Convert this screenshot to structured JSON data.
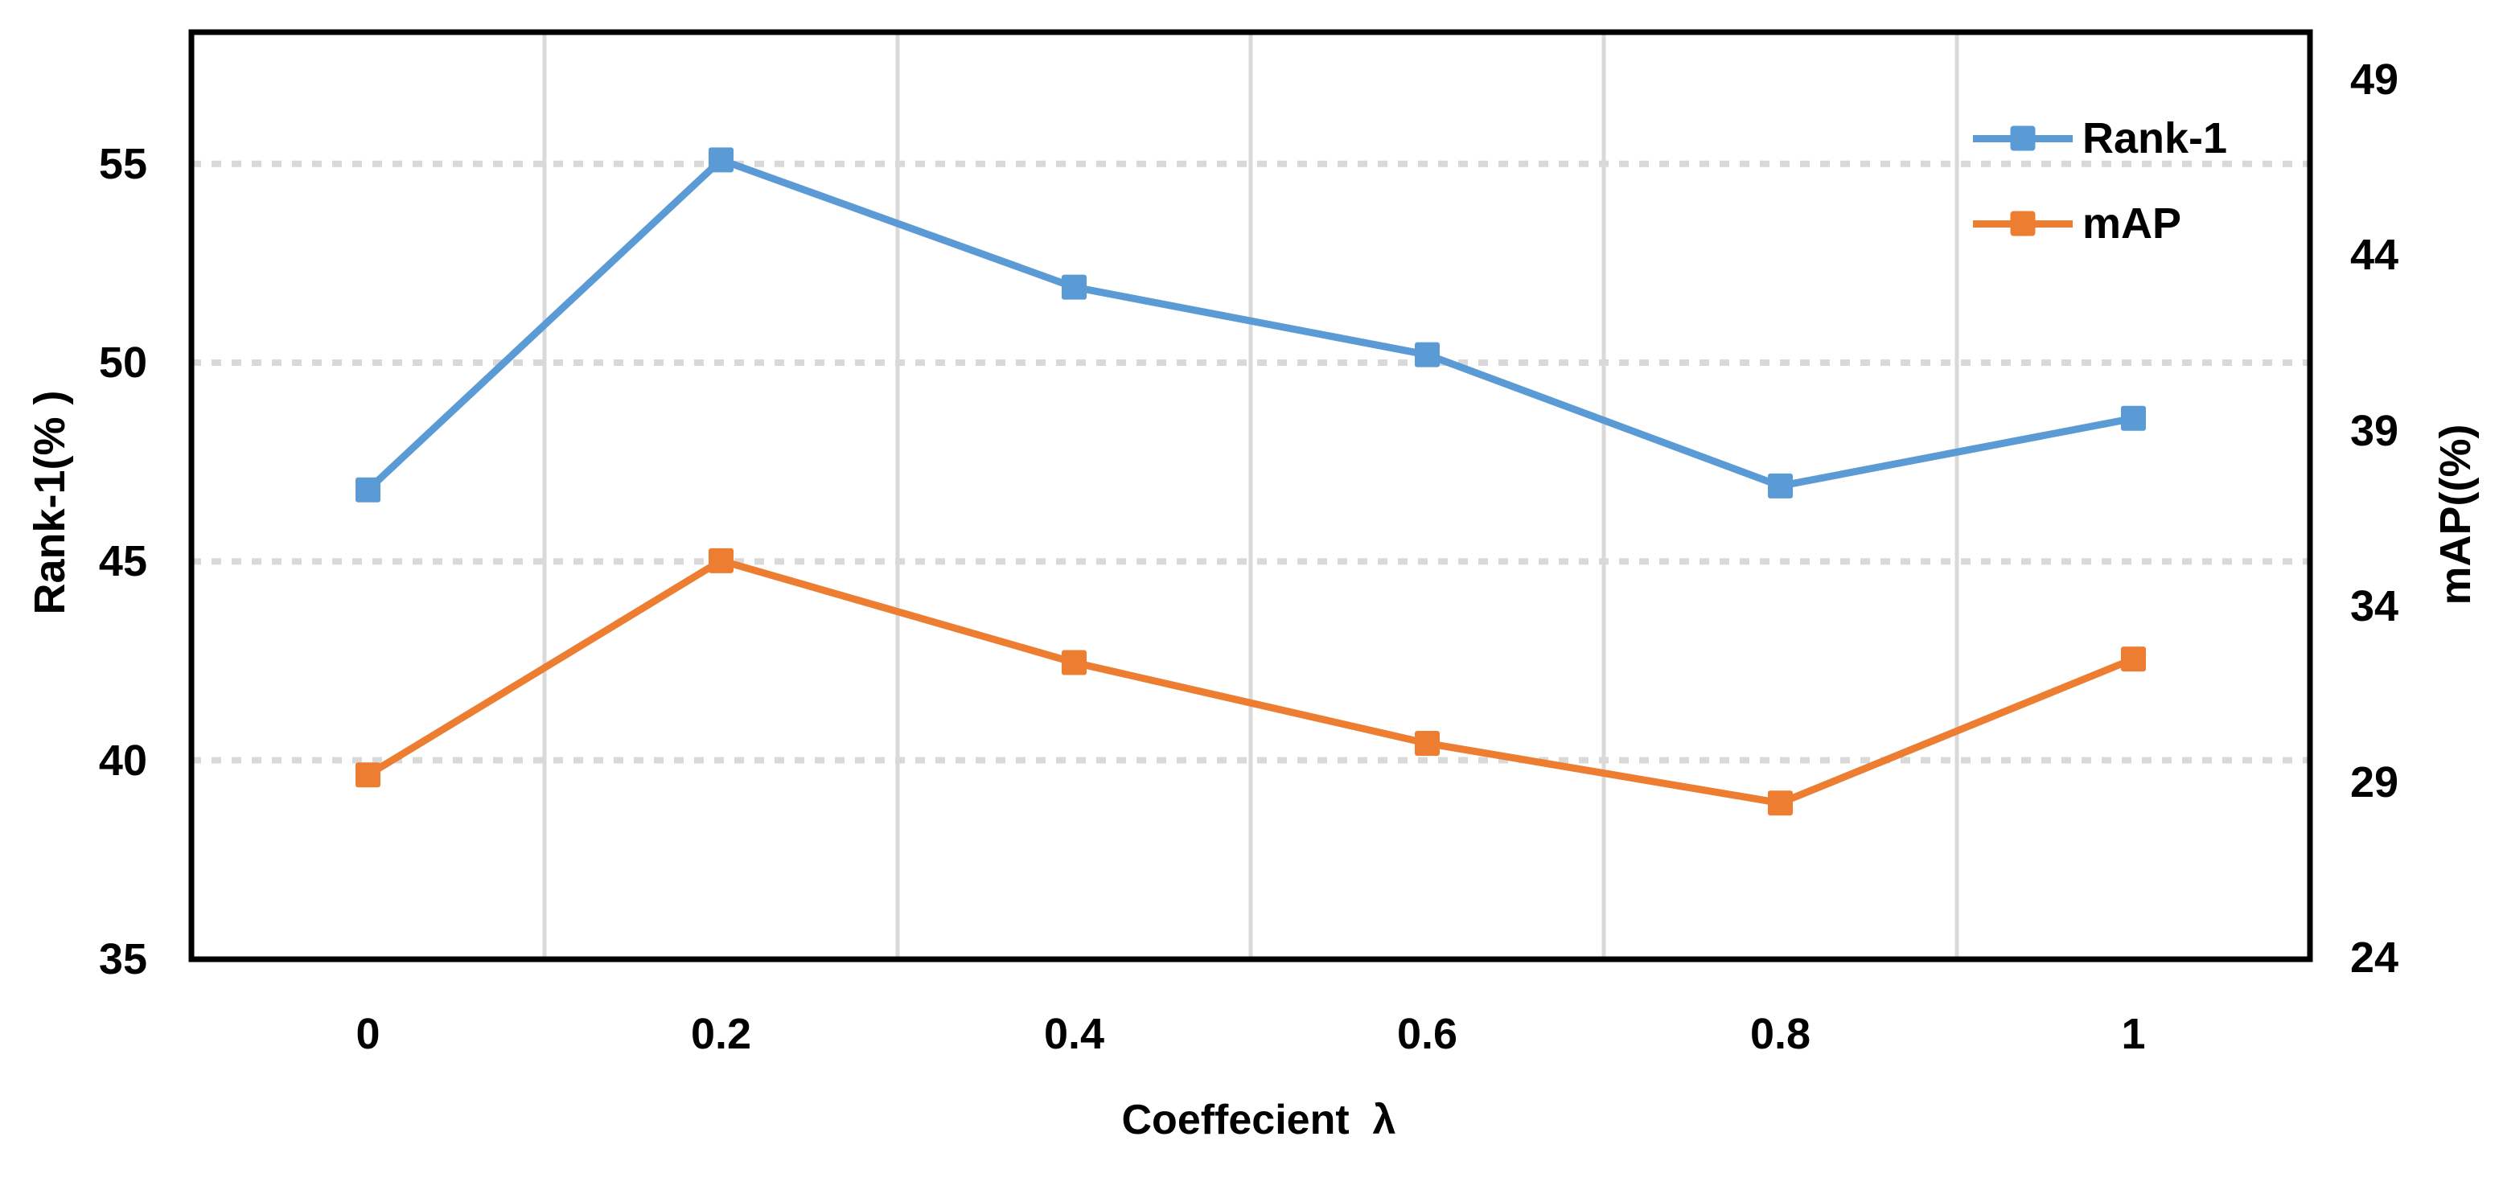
{
  "chart_data": {
    "type": "line",
    "title": "",
    "xlabel": "Coeffecient  λ",
    "x": [
      0,
      0.2,
      0.4,
      0.6,
      0.8,
      1
    ],
    "x_tick_labels": [
      "0",
      "0.2",
      "0.4",
      "0.6",
      "0.8",
      "1"
    ],
    "series": [
      {
        "name": "Rank-1",
        "axis": "left",
        "color": "#5B9BD5",
        "marker": "square",
        "values": [
          46.8,
          55.1,
          51.9,
          50.2,
          46.9,
          48.6
        ]
      },
      {
        "name": "mAP",
        "axis": "right",
        "color": "#ED7D31",
        "marker": "square",
        "values": [
          29.2,
          35.3,
          32.4,
          30.1,
          28.4,
          32.5
        ]
      }
    ],
    "left_axis": {
      "title": "Rank-1(% )",
      "ticks": [
        35,
        40,
        45,
        50,
        55
      ],
      "ylim": [
        35,
        58.3
      ]
    },
    "right_axis": {
      "title": "mAP((%)",
      "ticks": [
        24,
        29,
        34,
        39,
        44,
        49
      ],
      "ylim": [
        24,
        50.4
      ]
    },
    "legend": {
      "position": "top-right-inside",
      "entries": [
        "Rank-1",
        "mAP"
      ]
    },
    "grid": {
      "horizontal": "dotted",
      "vertical": "solid",
      "color": "#D9D9D9"
    },
    "frame_color": "#000000",
    "background": "#FFFFFF"
  }
}
